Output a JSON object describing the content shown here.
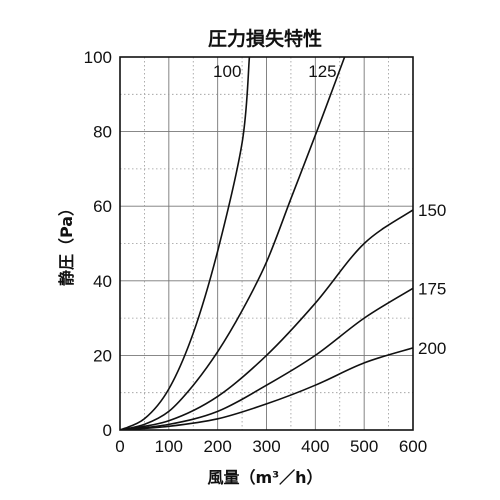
{
  "chart_data": {
    "type": "line",
    "title": "圧力損失特性",
    "xlabel": "風量（m³／h）",
    "ylabel": "静圧（Pa）",
    "xlim": [
      0,
      600
    ],
    "ylim": [
      0,
      100
    ],
    "x_ticks": [
      "0",
      "100",
      "200",
      "300",
      "400",
      "500",
      "600"
    ],
    "y_ticks": [
      "0",
      "20",
      "40",
      "60",
      "80",
      "100"
    ],
    "grid": true,
    "legend": "none",
    "series": [
      {
        "name": "100",
        "points": [
          [
            0,
            0
          ],
          [
            50,
            3
          ],
          [
            100,
            11
          ],
          [
            150,
            26
          ],
          [
            200,
            48
          ],
          [
            250,
            77
          ],
          [
            265,
            100
          ]
        ]
      },
      {
        "name": "125",
        "points": [
          [
            0,
            0
          ],
          [
            50,
            1.5
          ],
          [
            100,
            5
          ],
          [
            150,
            12
          ],
          [
            200,
            21
          ],
          [
            250,
            32
          ],
          [
            300,
            45
          ],
          [
            350,
            62
          ],
          [
            400,
            79
          ],
          [
            440,
            93
          ],
          [
            460,
            100
          ]
        ]
      },
      {
        "name": "150",
        "points": [
          [
            0,
            0
          ],
          [
            100,
            2.5
          ],
          [
            200,
            9
          ],
          [
            300,
            20
          ],
          [
            400,
            34
          ],
          [
            500,
            50
          ],
          [
            600,
            59
          ]
        ]
      },
      {
        "name": "175",
        "points": [
          [
            0,
            0
          ],
          [
            100,
            1.5
          ],
          [
            200,
            5
          ],
          [
            300,
            12
          ],
          [
            400,
            20
          ],
          [
            500,
            30
          ],
          [
            600,
            38
          ]
        ]
      },
      {
        "name": "200",
        "points": [
          [
            0,
            0
          ],
          [
            100,
            1
          ],
          [
            200,
            3
          ],
          [
            300,
            7
          ],
          [
            400,
            12
          ],
          [
            500,
            18
          ],
          [
            600,
            22
          ]
        ]
      }
    ]
  }
}
